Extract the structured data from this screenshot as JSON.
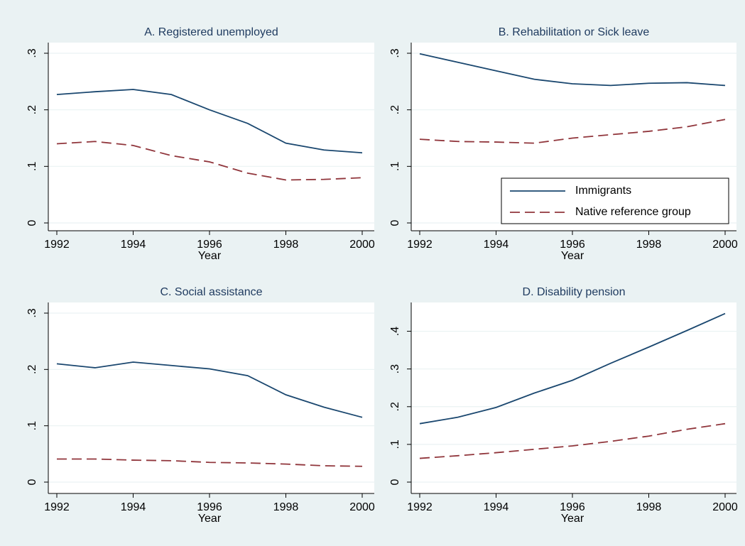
{
  "chart_data": [
    {
      "type": "line",
      "title": "A. Registered unemployed",
      "xlabel": "Year",
      "x": [
        1992,
        1993,
        1994,
        1995,
        1996,
        1997,
        1998,
        1999,
        2000
      ],
      "xlim": [
        1992,
        2000
      ],
      "xticks": [
        1992,
        1994,
        1996,
        1998,
        2000
      ],
      "ylim": [
        0,
        0.3
      ],
      "yticks": [
        0,
        {
          "value": 0.1,
          "label": ".1"
        },
        {
          "value": 0.2,
          "label": ".2"
        },
        {
          "value": 0.3,
          "label": ".3"
        }
      ],
      "grid": true,
      "series": [
        {
          "color": "#1a476f",
          "dash": "solid",
          "values": [
            0.227,
            0.232,
            0.236,
            0.227,
            0.2,
            0.176,
            0.141,
            0.129,
            0.124
          ]
        },
        {
          "color": "#90353b",
          "dash": "dashed",
          "values": [
            0.14,
            0.144,
            0.137,
            0.119,
            0.108,
            0.088,
            0.076,
            0.077,
            0.08
          ]
        }
      ]
    },
    {
      "type": "line",
      "title": "B. Rehabilitation or Sick leave",
      "xlabel": "Year",
      "x": [
        1992,
        1993,
        1994,
        1995,
        1996,
        1997,
        1998,
        1999,
        2000
      ],
      "xlim": [
        1992,
        2000
      ],
      "xticks": [
        1992,
        1994,
        1996,
        1998,
        2000
      ],
      "ylim": [
        0,
        0.3
      ],
      "yticks": [
        0,
        {
          "value": 0.1,
          "label": ".1"
        },
        {
          "value": 0.2,
          "label": ".2"
        },
        {
          "value": 0.3,
          "label": ".3"
        }
      ],
      "grid": true,
      "legend": "lower right",
      "series": [
        {
          "name": "Immigrants",
          "color": "#1a476f",
          "dash": "solid",
          "values": [
            0.299,
            0.284,
            0.269,
            0.254,
            0.246,
            0.243,
            0.247,
            0.248,
            0.243
          ]
        },
        {
          "name": "Native reference group",
          "color": "#90353b",
          "dash": "dashed",
          "values": [
            0.148,
            0.144,
            0.143,
            0.141,
            0.15,
            0.156,
            0.162,
            0.17,
            0.183
          ]
        }
      ]
    },
    {
      "type": "line",
      "title": "C. Social assistance",
      "xlabel": "Year",
      "x": [
        1992,
        1993,
        1994,
        1995,
        1996,
        1997,
        1998,
        1999,
        2000
      ],
      "xlim": [
        1992,
        2000
      ],
      "xticks": [
        1992,
        1994,
        1996,
        1998,
        2000
      ],
      "ylim": [
        0,
        0.3
      ],
      "yticks": [
        0,
        {
          "value": 0.1,
          "label": ".1"
        },
        {
          "value": 0.2,
          "label": ".2"
        },
        {
          "value": 0.3,
          "label": ".3"
        }
      ],
      "grid": true,
      "series": [
        {
          "color": "#1a476f",
          "dash": "solid",
          "values": [
            0.21,
            0.203,
            0.213,
            0.207,
            0.201,
            0.189,
            0.155,
            0.133,
            0.115
          ]
        },
        {
          "color": "#90353b",
          "dash": "dashed",
          "values": [
            0.041,
            0.041,
            0.039,
            0.038,
            0.035,
            0.034,
            0.032,
            0.029,
            0.028
          ]
        }
      ]
    },
    {
      "type": "line",
      "title": "D. Disability pension",
      "xlabel": "Year",
      "x": [
        1992,
        1993,
        1994,
        1995,
        1996,
        1997,
        1998,
        1999,
        2000
      ],
      "xlim": [
        1992,
        2000
      ],
      "xticks": [
        1992,
        1994,
        1996,
        1998,
        2000
      ],
      "ylim": [
        0,
        0.45
      ],
      "yticks": [
        0,
        {
          "value": 0.1,
          "label": ".1"
        },
        {
          "value": 0.2,
          "label": ".2"
        },
        {
          "value": 0.3,
          "label": ".3"
        },
        {
          "value": 0.4,
          "label": ".4"
        }
      ],
      "grid": true,
      "series": [
        {
          "color": "#1a476f",
          "dash": "solid",
          "values": [
            0.155,
            0.172,
            0.198,
            0.236,
            0.27,
            0.315,
            0.358,
            0.402,
            0.447
          ]
        },
        {
          "color": "#90353b",
          "dash": "dashed",
          "values": [
            0.063,
            0.07,
            0.078,
            0.087,
            0.096,
            0.108,
            0.122,
            0.14,
            0.155
          ]
        }
      ]
    }
  ]
}
